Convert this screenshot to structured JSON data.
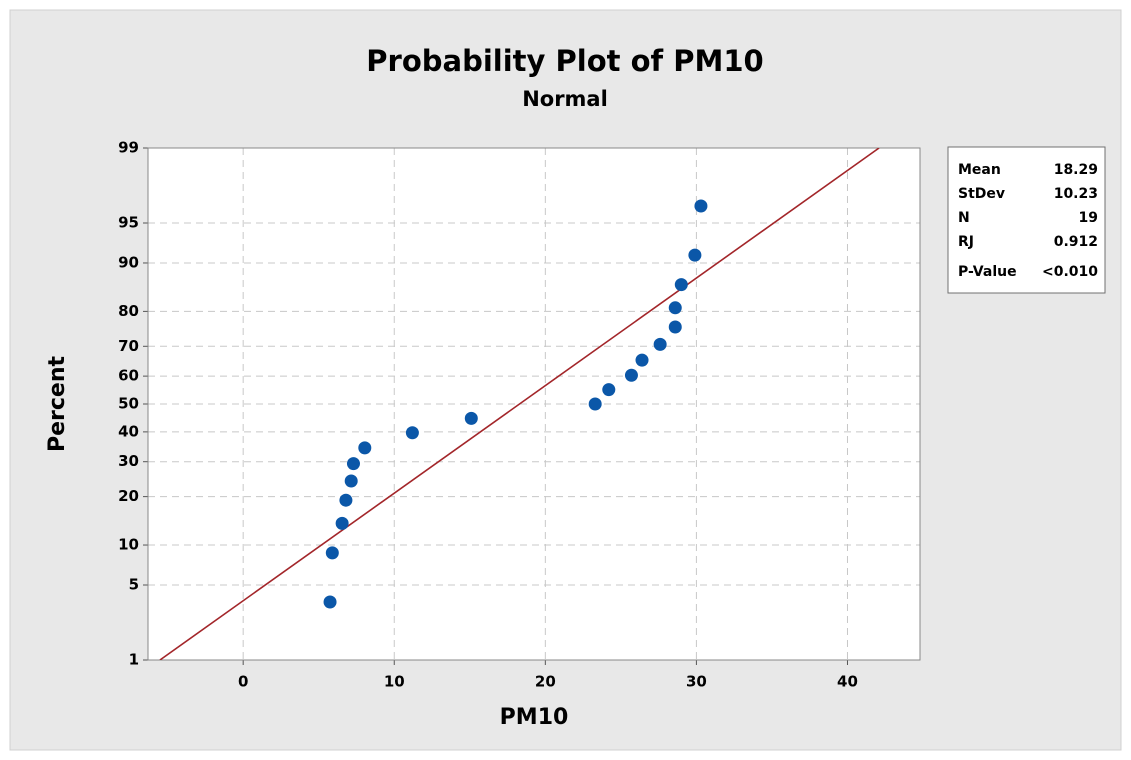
{
  "chart_data": {
    "type": "probability",
    "title": "Probability Plot of PM10",
    "subtitle": "Normal",
    "x_label": "PM10",
    "y_label": "Percent",
    "xlim": [
      -6.3,
      44.8
    ],
    "xticks": [
      0,
      10,
      20,
      30,
      40
    ],
    "ylim": [
      1,
      99
    ],
    "yticks": [
      1,
      5,
      10,
      20,
      30,
      40,
      50,
      60,
      70,
      80,
      90,
      95,
      99
    ],
    "y_scale": "normal-probability",
    "grid": true,
    "point_color": "#0b57a8",
    "line_color": "#a3262a",
    "x": [
      5.75,
      5.9,
      6.55,
      6.8,
      7.15,
      7.3,
      8.05,
      11.2,
      15.1,
      23.3,
      24.2,
      25.7,
      26.4,
      27.6,
      28.6,
      28.6,
      29.0,
      29.9,
      30.3
    ],
    "values": [
      3.6,
      8.8,
      13.9,
      19.1,
      24.2,
      29.4,
      34.5,
      39.7,
      44.8,
      50,
      55.2,
      60.3,
      65.5,
      70.6,
      75.8,
      80.9,
      86.1,
      91.2,
      96.4
    ],
    "stats": [
      {
        "label": "Mean",
        "value": 18.29
      },
      {
        "label": "StDev",
        "value": 10.23
      },
      {
        "label": "N",
        "value": 19
      },
      {
        "label": "RJ",
        "value": 0.912
      },
      {
        "label": "P-Value",
        "value": "<0.010"
      }
    ]
  }
}
